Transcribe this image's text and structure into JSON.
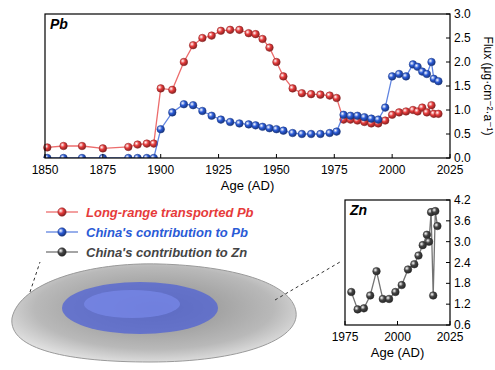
{
  "chart_data": [
    {
      "type": "line",
      "title": "Pb",
      "xlabel": "Age (AD)",
      "ylabel": "Flux (μg·cm⁻²·a⁻¹)",
      "x": [
        1851,
        1858,
        1866,
        1875,
        1886,
        1890,
        1894,
        1897,
        1900,
        1905,
        1910,
        1914,
        1918,
        1922,
        1926,
        1930,
        1934,
        1938,
        1941,
        1944,
        1947,
        1950,
        1953,
        1957,
        1961,
        1965,
        1969,
        1973,
        1976,
        1979,
        1982,
        1985,
        1988,
        1991,
        1994,
        1997,
        2000,
        2003,
        2006,
        2009,
        2011,
        2013,
        2015,
        2017,
        2018,
        2020
      ],
      "series": [
        {
          "name": "Long-range transported Pb",
          "color": "#e63b3b",
          "marker": "circle",
          "line_style": "solid",
          "values": [
            0.22,
            0.25,
            0.25,
            0.2,
            0.23,
            0.28,
            0.3,
            0.3,
            1.45,
            1.42,
            2.0,
            2.35,
            2.5,
            2.55,
            2.65,
            2.67,
            2.67,
            2.6,
            2.58,
            2.48,
            2.3,
            2.0,
            1.7,
            1.45,
            1.35,
            1.33,
            1.32,
            1.3,
            1.25,
            0.8,
            0.8,
            0.78,
            0.75,
            0.72,
            0.72,
            0.78,
            0.9,
            0.95,
            0.97,
            1.0,
            0.97,
            1.05,
            0.95,
            1.1,
            0.92,
            0.92
          ]
        },
        {
          "name": "China's contribution to Pb",
          "color": "#2a5ad6",
          "marker": "circle",
          "line_style": "solid",
          "values": [
            0,
            0,
            0,
            0,
            0,
            0,
            0,
            0,
            0.6,
            0.95,
            1.12,
            1.1,
            0.98,
            0.88,
            0.8,
            0.75,
            0.72,
            0.7,
            0.68,
            0.65,
            0.62,
            0.6,
            0.57,
            0.52,
            0.5,
            0.5,
            0.5,
            0.52,
            0.55,
            0.9,
            0.88,
            0.88,
            0.85,
            0.82,
            0.8,
            1.05,
            1.7,
            1.75,
            1.7,
            1.95,
            1.9,
            1.8,
            1.75,
            2.0,
            1.65,
            1.6
          ]
        }
      ],
      "xlim": [
        1850,
        2025
      ],
      "xticks": [
        1850,
        1875,
        1900,
        1925,
        1950,
        1975,
        2000,
        2025
      ],
      "ylim": [
        0,
        3
      ],
      "yticks": [
        {
          "value": 0,
          "label": "0.0"
        },
        {
          "value": 0.5,
          "label": "0.5"
        },
        {
          "value": 1,
          "label": "1.0"
        },
        {
          "value": 1.5,
          "label": "1.5"
        },
        {
          "value": 2,
          "label": "2.0"
        },
        {
          "value": 2.5,
          "label": "2.5"
        },
        {
          "value": 3,
          "label": "3.0"
        }
      ],
      "grid": false,
      "legend": "bottom-left"
    },
    {
      "type": "line",
      "title": "Zn",
      "xlabel": "Age (AD)",
      "x": [
        1978,
        1981,
        1984,
        1987,
        1990,
        1993,
        1996,
        1999,
        2002,
        2005,
        2008,
        2010,
        2012,
        2014,
        2015,
        2016,
        2017,
        2018,
        2019
      ],
      "series": [
        {
          "name": "China's contribution to Zn",
          "color": "#444444",
          "marker": "circle",
          "line_style": "solid",
          "values": [
            1.55,
            1.05,
            1.08,
            1.45,
            2.15,
            1.35,
            1.35,
            1.55,
            1.75,
            2.2,
            2.35,
            2.6,
            2.9,
            3.2,
            3.0,
            3.85,
            1.45,
            3.88,
            3.45
          ]
        }
      ],
      "xlim": [
        1975,
        2025
      ],
      "xticks": [
        1975,
        2000,
        2025
      ],
      "ylim": [
        0.6,
        4.2
      ],
      "yticks": [
        0.6,
        1.2,
        1.8,
        2.4,
        {
          "value": 3,
          "label": "3.0"
        },
        3.6,
        4.2
      ],
      "grid": false,
      "legend": "left"
    }
  ]
}
